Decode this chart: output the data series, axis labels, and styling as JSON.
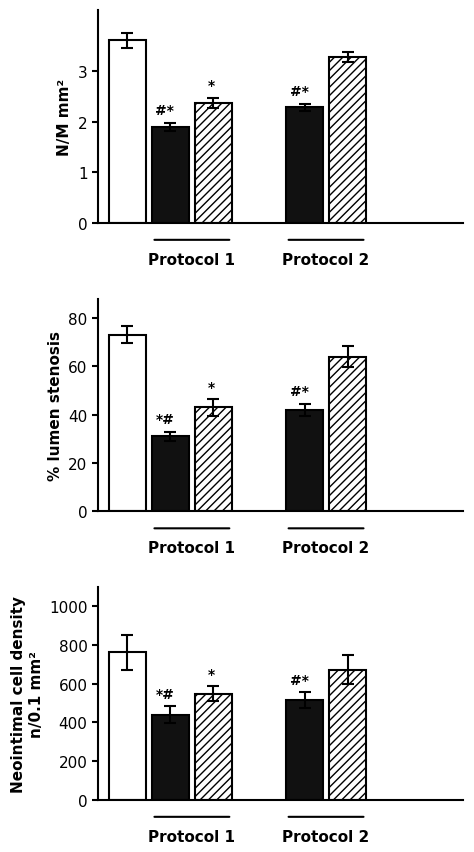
{
  "panels": [
    {
      "ylabel": "N/M mm²",
      "ylim": [
        0,
        4.2
      ],
      "yticks": [
        0,
        1,
        2,
        3
      ],
      "protocol1": {
        "white": {
          "val": 3.6,
          "err": 0.15
        },
        "black": {
          "val": 1.9,
          "err": 0.08
        },
        "hatch": {
          "val": 2.37,
          "err": 0.1
        }
      },
      "protocol2": {
        "black": {
          "val": 2.28,
          "err": 0.07
        },
        "hatch": {
          "val": 3.28,
          "err": 0.1
        }
      },
      "annotations": {
        "p1_black": "#*",
        "p1_hatch": "*",
        "p2_black": "#*",
        "p2_hatch": ""
      }
    },
    {
      "ylabel": "% lumen stenosis",
      "ylim": [
        0,
        88
      ],
      "yticks": [
        0,
        20,
        40,
        60,
        80
      ],
      "protocol1": {
        "white": {
          "val": 73,
          "err": 3.5
        },
        "black": {
          "val": 31,
          "err": 2.0
        },
        "hatch": {
          "val": 43,
          "err": 3.5
        }
      },
      "protocol2": {
        "black": {
          "val": 42,
          "err": 2.5
        },
        "hatch": {
          "val": 64,
          "err": 4.5
        }
      },
      "annotations": {
        "p1_black": "*#",
        "p1_hatch": "*",
        "p2_black": "#*",
        "p2_hatch": ""
      }
    },
    {
      "ylabel": "Neointimal cell density\nn/0.1 mm²",
      "ylim": [
        0,
        1100
      ],
      "yticks": [
        0,
        200,
        400,
        600,
        800,
        1000
      ],
      "protocol1": {
        "white": {
          "val": 763,
          "err": 90
        },
        "black": {
          "val": 440,
          "err": 45
        },
        "hatch": {
          "val": 548,
          "err": 38
        }
      },
      "protocol2": {
        "black": {
          "val": 515,
          "err": 42
        },
        "hatch": {
          "val": 672,
          "err": 75
        }
      },
      "annotations": {
        "p1_black": "*#",
        "p1_hatch": "*",
        "p2_black": "#*",
        "p2_hatch": ""
      }
    }
  ],
  "bar_width": 0.7,
  "white_color": "#ffffff",
  "black_color": "#111111",
  "hatch_color": "#ffffff",
  "hatch_pattern": "////",
  "edge_color": "#000000",
  "font_size": 11,
  "annotation_font_size": 10,
  "protocol_label_fontsize": 11,
  "xlim": [
    0.0,
    6.8
  ]
}
